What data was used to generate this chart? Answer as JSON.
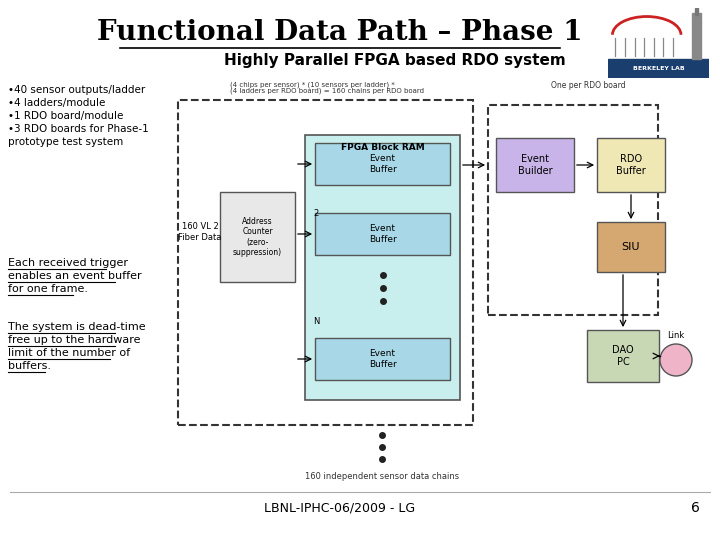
{
  "title": "Functional Data Path – Phase 1",
  "subtitle": "Highly Parallel FPGA based RDO system",
  "bg_color": "#ffffff",
  "bullet_points": [
    "•40 sensor outputs/ladder",
    "•4 ladders/module",
    "•1 RDO board/module",
    "•3 RDO boards for Phase-1",
    "prototype test system"
  ],
  "text_trigger_lines": [
    "Each received trigger",
    "enables an event buffer",
    "for one frame."
  ],
  "text_deadtime_lines": [
    "The system is dead-time",
    "free up to the hardware",
    "limit of the number of",
    "buffers."
  ],
  "footnote_left": "LBNL-IPHC-06/2009 - LG",
  "footnote_right": "6",
  "small_label_top1": "(4 chips per sensor) * (10 sensors per ladder) *",
  "small_label_top2": "(4 ladders per RDO board) = 160 chains per RDO board",
  "small_label_right": "One per RDO board",
  "small_label_bottom": "160 independent sensor data chains",
  "label_160vl2": "160 VL 2\nFiber Data",
  "label_addr": "Address\nCounter\n(zero-\nsuppression)",
  "label_fpga_ram": "FPGA Block RAM",
  "label_eb1": "Event\nBuffer",
  "label_2": "2",
  "label_eb2": "Event\nBuffer",
  "label_n": "N",
  "label_ebn": "Event\nBuffer",
  "label_event_builder": "Event\nBuilder",
  "label_rdo_buffer": "RDO\nBuffer",
  "label_siu": "SIU",
  "label_dao_pc": "DAO\nPC",
  "label_link": "Link",
  "color_fpga_bg": "#c8eeee",
  "color_event_builder": "#c8b4e8",
  "color_rdo_buffer": "#f0e8b4",
  "color_siu": "#d4a870",
  "color_dao_pc": "#c8d8b4",
  "color_link": "#f0b4c8",
  "color_dashed_box": "#333333",
  "color_addr_box": "#e8e8e8",
  "color_eb": "#a8d8e8"
}
